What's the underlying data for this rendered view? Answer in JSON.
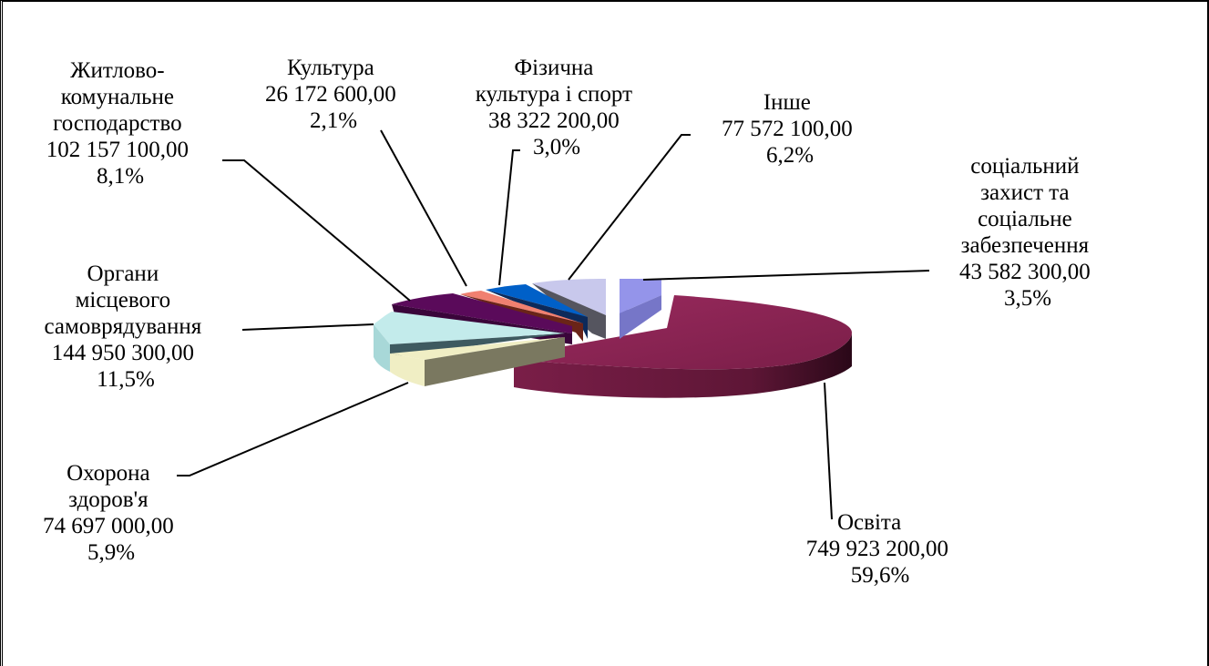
{
  "chart_data": {
    "type": "pie",
    "style": "3d-exploded",
    "title": "",
    "slices": [
      {
        "name": "Освіта",
        "value": "749 923 200,00",
        "percent": "59,6%",
        "value_num": 749923200.0,
        "percent_num": 59.6,
        "color": "#8B2252"
      },
      {
        "name": "Охорона здоров'я",
        "value": "74 697 000,00",
        "percent": "5,9%",
        "value_num": 74697000.0,
        "percent_num": 5.9,
        "color": "#F0EEC4"
      },
      {
        "name": "Органи місцевого самоврядування",
        "value": "144 950 300,00",
        "percent": "11,5%",
        "value_num": 144950300.0,
        "percent_num": 11.5,
        "color": "#C3EBEB"
      },
      {
        "name": "Житлово-комунальне господарство",
        "value": "102 157 100,00",
        "percent": "8,1%",
        "value_num": 102157100.0,
        "percent_num": 8.1,
        "color": "#5A0A5A"
      },
      {
        "name": "Культура",
        "value": "26 172 600,00",
        "percent": "2,1%",
        "value_num": 26172600.0,
        "percent_num": 2.1,
        "color": "#F08070"
      },
      {
        "name": "Фізична культура і спорт",
        "value": "38 322 200,00",
        "percent": "3,0%",
        "value_num": 38322200.0,
        "percent_num": 3.0,
        "color": "#0060C8"
      },
      {
        "name": "Інше",
        "value": "77 572 100,00",
        "percent": "6,2%",
        "value_num": 77572100.0,
        "percent_num": 6.2,
        "color": "#C8C8EC"
      },
      {
        "name": "соціальний захист та соціальне забезпечення",
        "value": "43 582 300,00",
        "percent": "3,5%",
        "value_num": 43582300.0,
        "percent_num": 3.5,
        "color": "#9090E8"
      }
    ],
    "labels": {
      "osvita": [
        "Освіта",
        "749 923 200,00",
        "59,6%"
      ],
      "okhorona": [
        "Охорона",
        "здоров'я",
        "74 697 000,00",
        "5,9%"
      ],
      "orhany": [
        "Органи",
        "місцевого",
        "самоврядування",
        "144 950 300,00",
        "11,5%"
      ],
      "zhytlovo": [
        "Житлово-",
        "комунальне",
        "господарство",
        "102 157 100,00",
        "8,1%"
      ],
      "kultura": [
        "Культура",
        "26 172 600,00",
        "2,1%"
      ],
      "sport": [
        "Фізична",
        "культура і спорт",
        "38 322 200,00",
        "3,0%"
      ],
      "inshe": [
        "Інше",
        "77 572 100,00",
        "6,2%"
      ],
      "sotsialnyi": [
        "соціальний",
        "захист та",
        "соціальне",
        "забезпечення",
        "43 582 300,00",
        "3,5%"
      ]
    }
  }
}
